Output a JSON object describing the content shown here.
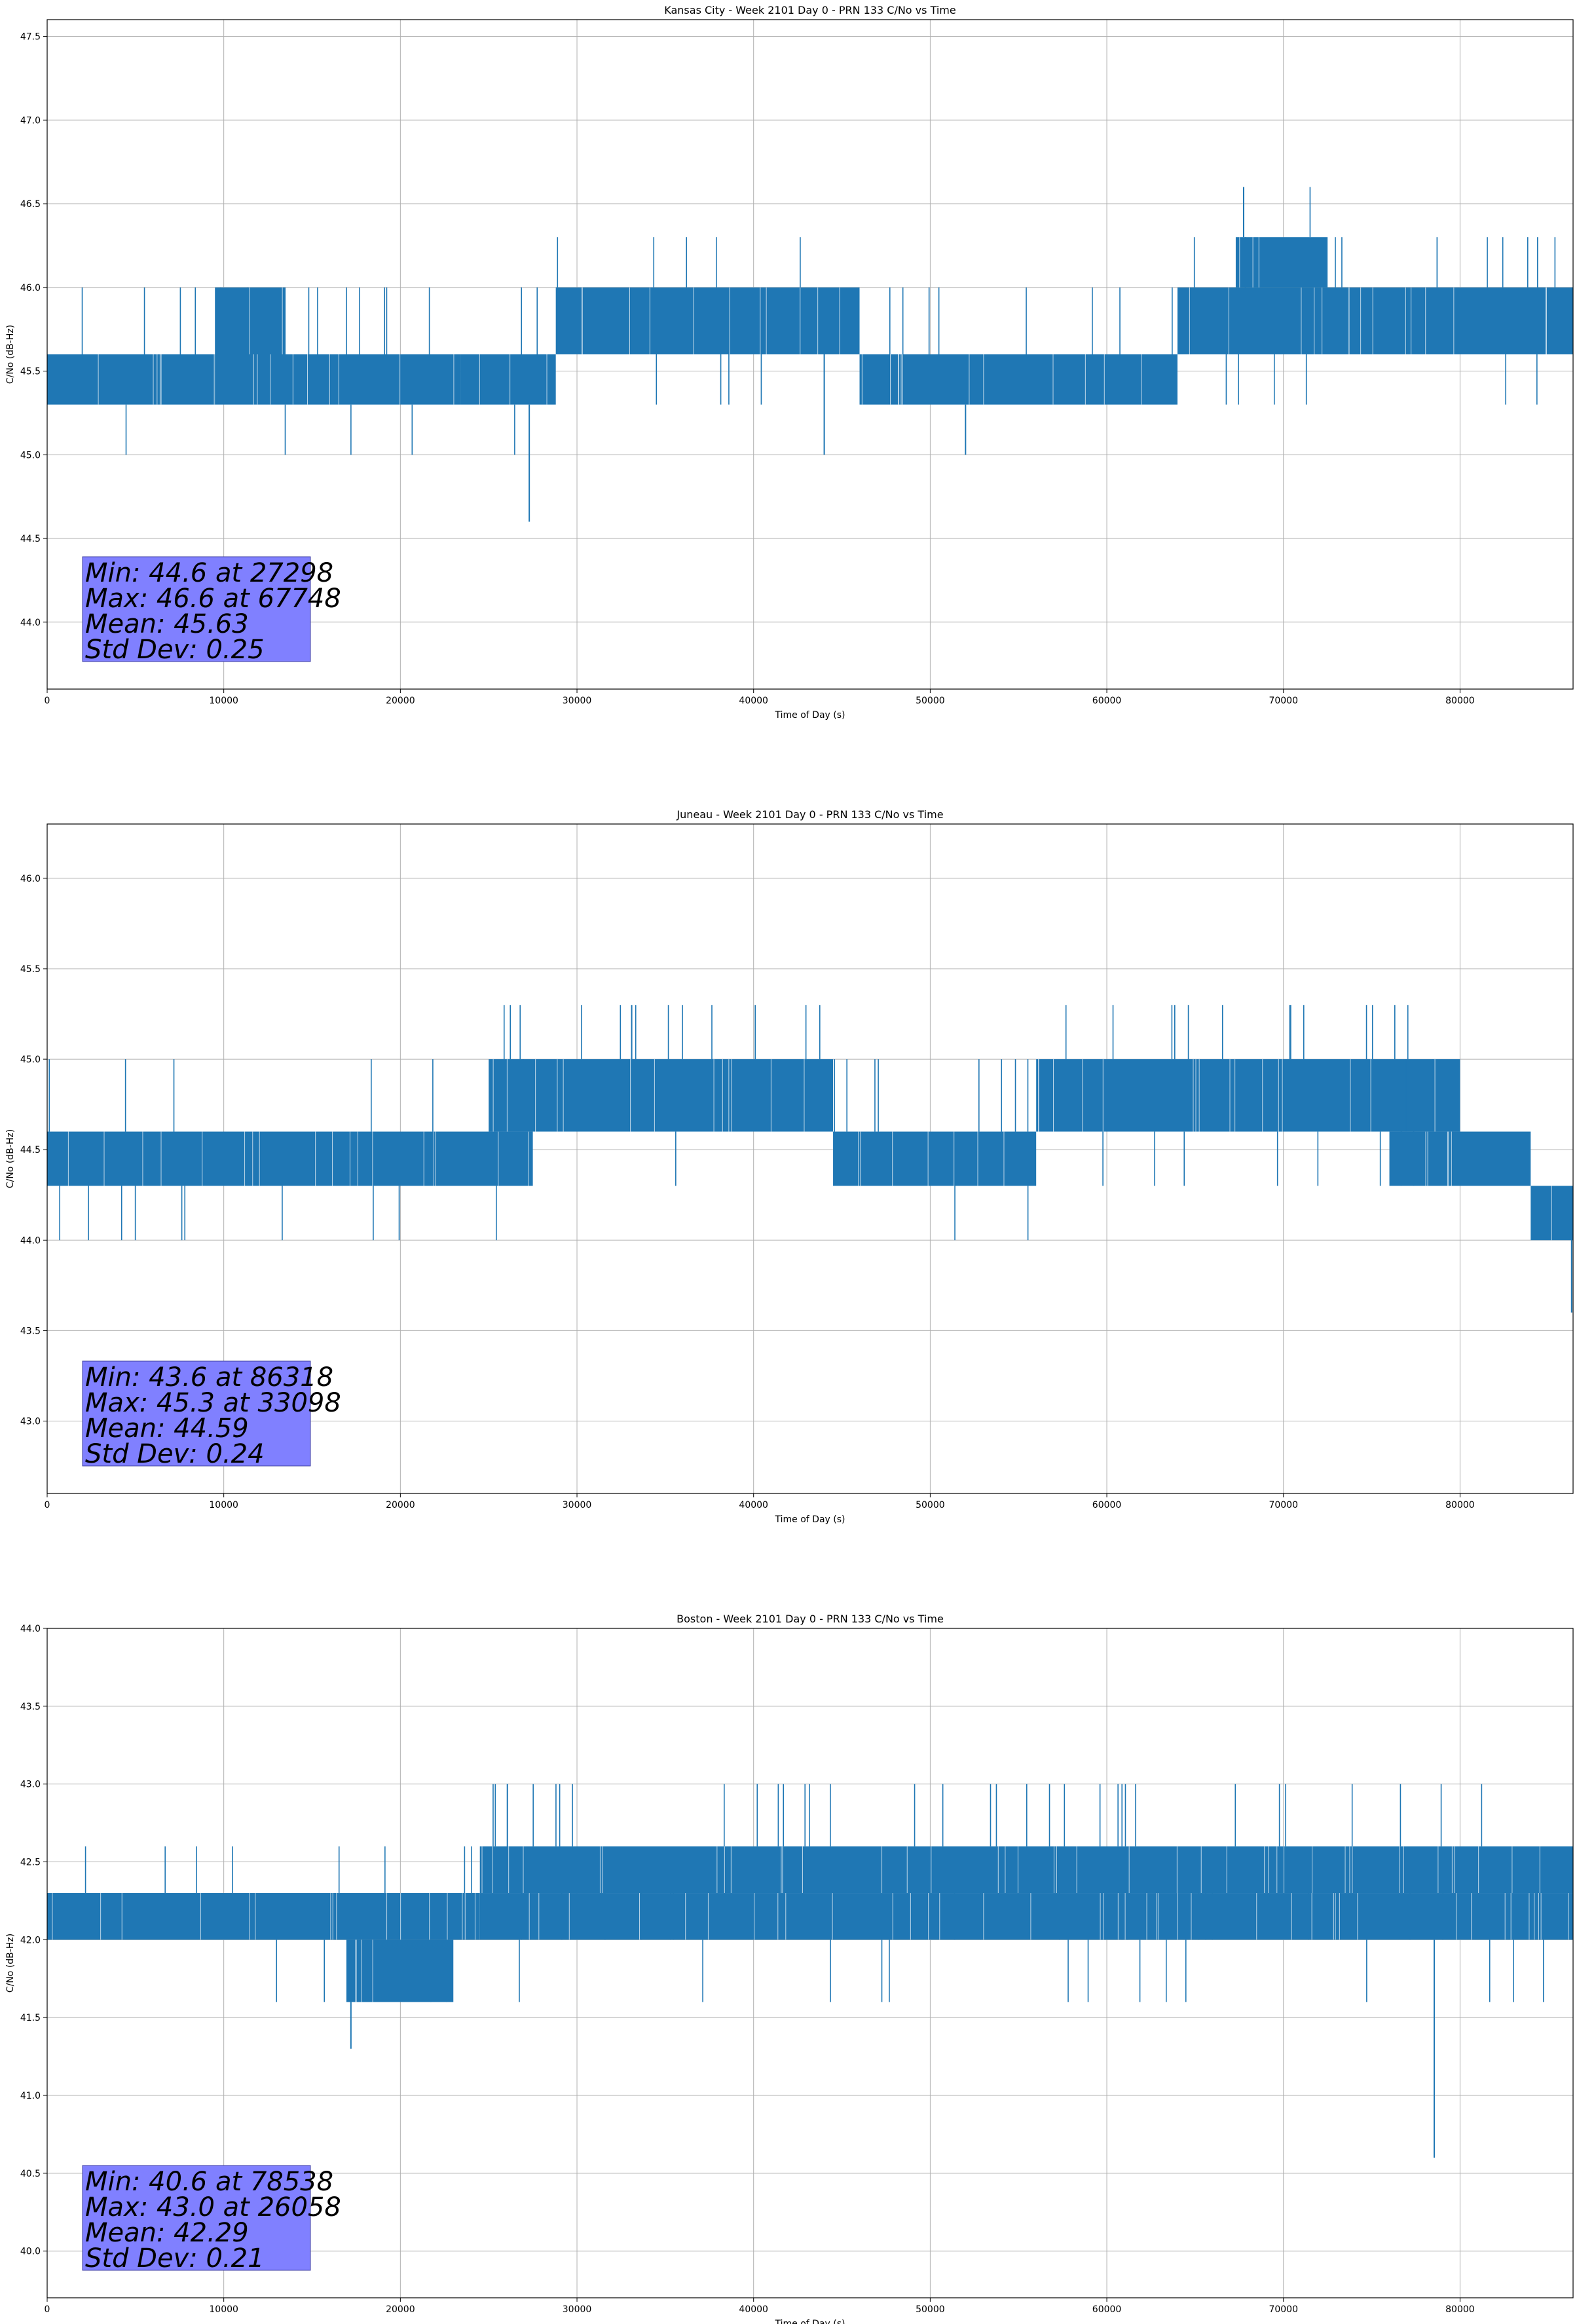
{
  "chart_data": [
    {
      "type": "line",
      "title": "Kansas City - Week 2101 Day 0 - PRN 133 C/No vs Time",
      "xlabel": "Time of Day (s)",
      "ylabel": "C/No (dB-Hz)",
      "xlim": [
        0,
        86400
      ],
      "ylim": [
        43.6,
        47.6
      ],
      "xticks": [
        0,
        10000,
        20000,
        30000,
        40000,
        50000,
        60000,
        70000,
        80000
      ],
      "yticks": [
        44.0,
        44.5,
        45.0,
        45.5,
        46.0,
        46.5,
        47.0,
        47.5
      ],
      "ytick_labels": [
        "44.0",
        "44.5",
        "45.0",
        "45.5",
        "46.0",
        "46.5",
        "47.0",
        "47.5"
      ],
      "grid": true,
      "series_color": "#1f77b4",
      "stats_box_color": "#8080ff",
      "stats": [
        "Min: 44.6 at 27298",
        "Max: 46.6 at 67748",
        "Mean: 45.63",
        "Std Dev: 0.25"
      ],
      "series": [
        {
          "bands": [
            {
              "x": [
                0,
                9500
              ],
              "values": [
                45.3,
                45.6
              ],
              "spikes_up": [
                46.0
              ],
              "spikes_down": [
                45.0
              ]
            },
            {
              "x": [
                9500,
                23400
              ],
              "values": [
                45.3,
                45.6
              ],
              "spikes_up": [
                46.0
              ],
              "spikes_down": [
                45.0
              ]
            },
            {
              "x": [
                9500,
                13500
              ],
              "values": [
                45.6,
                46.0
              ]
            },
            {
              "x": [
                23400,
                28800
              ],
              "values": [
                45.3,
                45.6
              ],
              "spikes_up": [
                46.0
              ],
              "spikes_down": [
                45.0
              ]
            },
            {
              "x": [
                28800,
                46000
              ],
              "values": [
                45.6,
                46.0
              ],
              "spikes_up": [
                46.3
              ],
              "spikes_down": [
                45.3
              ]
            },
            {
              "x": [
                46000,
                64000
              ],
              "values": [
                45.3,
                45.6
              ],
              "spikes_up": [
                46.0
              ]
            },
            {
              "x": [
                64000,
                86400
              ],
              "values": [
                45.6,
                46.0
              ],
              "spikes_up": [
                46.3
              ],
              "spikes_down": [
                45.3
              ]
            },
            {
              "x": [
                67300,
                72500
              ],
              "values": [
                46.0,
                46.3
              ],
              "spikes_up": [
                46.6
              ]
            }
          ],
          "points": [
            [
              27298,
              44.6
            ],
            [
              67748,
              46.6
            ],
            [
              44000,
              45.0
            ],
            [
              52000,
              45.0
            ]
          ]
        }
      ]
    },
    {
      "type": "line",
      "title": "Juneau - Week 2101 Day 0 - PRN 133 C/No vs Time",
      "xlabel": "Time of Day (s)",
      "ylabel": "C/No (dB-Hz)",
      "xlim": [
        0,
        86400
      ],
      "ylim": [
        42.6,
        46.3
      ],
      "xticks": [
        0,
        10000,
        20000,
        30000,
        40000,
        50000,
        60000,
        70000,
        80000
      ],
      "yticks": [
        43.0,
        43.5,
        44.0,
        44.5,
        45.0,
        45.5,
        46.0
      ],
      "ytick_labels": [
        "43.0",
        "43.5",
        "44.0",
        "44.5",
        "45.0",
        "45.5",
        "46.0"
      ],
      "grid": true,
      "series_color": "#1f77b4",
      "stats_box_color": "#8080ff",
      "stats": [
        "Min: 43.6 at 86318",
        "Max: 45.3 at 33098",
        "Mean: 44.59",
        "Std Dev: 0.24"
      ],
      "series": [
        {
          "bands": [
            {
              "x": [
                0,
                27500
              ],
              "values": [
                44.3,
                44.6
              ],
              "spikes_up": [
                45.0
              ],
              "spikes_down": [
                44.0
              ]
            },
            {
              "x": [
                25000,
                44500
              ],
              "values": [
                44.6,
                45.0
              ],
              "spikes_up": [
                45.3
              ],
              "spikes_down": [
                44.3
              ]
            },
            {
              "x": [
                44500,
                56000
              ],
              "values": [
                44.3,
                44.6
              ],
              "spikes_up": [
                45.0
              ],
              "spikes_down": [
                44.0
              ]
            },
            {
              "x": [
                56000,
                80000
              ],
              "values": [
                44.6,
                45.0
              ],
              "spikes_up": [
                45.3
              ],
              "spikes_down": [
                44.3
              ]
            },
            {
              "x": [
                76000,
                84000
              ],
              "values": [
                44.3,
                44.6
              ],
              "spikes_up": [
                45.0
              ]
            },
            {
              "x": [
                84000,
                86400
              ],
              "values": [
                44.0,
                44.3
              ],
              "spikes_up": [
                44.6
              ]
            }
          ],
          "points": [
            [
              33098,
              45.3
            ],
            [
              86318,
              43.6
            ]
          ]
        }
      ]
    },
    {
      "type": "line",
      "title": "Boston - Week 2101 Day 0 - PRN 133 C/No vs Time",
      "xlabel": "Time of Day (s)",
      "ylabel": "C/No (dB-Hz)",
      "xlim": [
        0,
        86400
      ],
      "ylim": [
        39.7,
        44.0
      ],
      "xticks": [
        0,
        10000,
        20000,
        30000,
        40000,
        50000,
        60000,
        70000,
        80000
      ],
      "yticks": [
        40.0,
        40.5,
        41.0,
        41.5,
        42.0,
        42.5,
        43.0,
        43.5,
        44.0
      ],
      "ytick_labels": [
        "40.0",
        "40.5",
        "41.0",
        "41.5",
        "42.0",
        "42.5",
        "43.0",
        "43.5",
        "44.0"
      ],
      "grid": true,
      "series_color": "#1f77b4",
      "stats_box_color": "#8080ff",
      "stats": [
        "Min: 40.6 at 78538",
        "Max: 43.0 at 26058",
        "Mean: 42.29",
        "Std Dev: 0.21"
      ],
      "series": [
        {
          "bands": [
            {
              "x": [
                0,
                24500
              ],
              "values": [
                42.0,
                42.3
              ],
              "spikes_up": [
                42.6
              ],
              "spikes_down": [
                41.6
              ]
            },
            {
              "x": [
                17000,
                23000
              ],
              "values": [
                41.6,
                42.0
              ]
            },
            {
              "x": [
                24500,
                86400
              ],
              "values": [
                42.3,
                42.6
              ],
              "spikes_up": [
                43.0
              ],
              "spikes_down": [
                42.0
              ]
            },
            {
              "x": [
                24500,
                86400
              ],
              "values": [
                42.0,
                42.3
              ],
              "spikes_down": [
                41.6
              ]
            }
          ],
          "points": [
            [
              26058,
              43.0
            ],
            [
              78538,
              40.6
            ],
            [
              17200,
              41.3
            ]
          ]
        }
      ]
    }
  ]
}
